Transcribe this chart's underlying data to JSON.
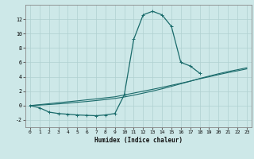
{
  "bg_color": "#cde8e8",
  "grid_color": "#b0d0d0",
  "line_color": "#1a6b6b",
  "xlabel": "Humidex (Indice chaleur)",
  "xlim": [
    -0.5,
    23.5
  ],
  "ylim": [
    -3.0,
    14.0
  ],
  "xticks": [
    0,
    1,
    2,
    3,
    4,
    5,
    6,
    7,
    8,
    9,
    10,
    11,
    12,
    13,
    14,
    15,
    16,
    17,
    18,
    19,
    20,
    21,
    22,
    23
  ],
  "yticks": [
    -2,
    0,
    2,
    4,
    6,
    8,
    10,
    12
  ],
  "x_curve": [
    0,
    1,
    2,
    3,
    4,
    5,
    6,
    7,
    8,
    9,
    10,
    11,
    12,
    13,
    14,
    15,
    16,
    17,
    18
  ],
  "y_curve": [
    0.0,
    -0.3,
    -0.9,
    -1.1,
    -1.2,
    -1.3,
    -1.35,
    -1.4,
    -1.3,
    -1.1,
    1.5,
    9.2,
    12.6,
    13.1,
    12.6,
    11.0,
    6.0,
    5.5,
    4.5
  ],
  "x_line1": [
    0,
    1,
    2,
    3,
    4,
    5,
    6,
    7,
    8,
    9,
    10,
    11,
    12,
    13,
    14,
    15,
    16,
    17,
    18,
    19,
    20,
    21,
    22,
    23
  ],
  "y_line1": [
    0.0,
    0.13,
    0.26,
    0.4,
    0.53,
    0.66,
    0.8,
    0.93,
    1.08,
    1.22,
    1.48,
    1.74,
    2.0,
    2.26,
    2.53,
    2.82,
    3.1,
    3.4,
    3.72,
    4.0,
    4.3,
    4.58,
    4.83,
    5.1
  ],
  "x_line2": [
    0,
    1,
    2,
    3,
    4,
    5,
    6,
    7,
    8,
    9,
    10,
    11,
    12,
    13,
    14,
    15,
    16,
    17,
    18,
    19,
    20,
    21,
    22,
    23
  ],
  "y_line2": [
    0.0,
    0.07,
    0.15,
    0.24,
    0.34,
    0.46,
    0.57,
    0.7,
    0.84,
    0.99,
    1.2,
    1.45,
    1.73,
    2.02,
    2.33,
    2.67,
    3.03,
    3.38,
    3.76,
    4.1,
    4.42,
    4.72,
    4.98,
    5.25
  ],
  "xlabel_fontsize": 5.5,
  "tick_fontsize": 4.5
}
